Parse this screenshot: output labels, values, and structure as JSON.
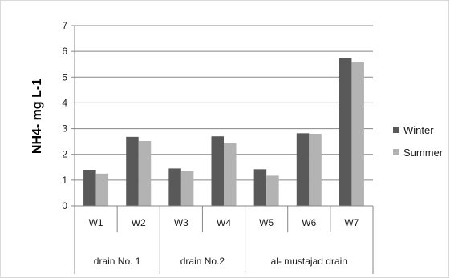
{
  "chart_data": {
    "type": "bar",
    "title": "",
    "xlabel": "",
    "ylabel": "NH4- mg L-1",
    "ylim": [
      0,
      7
    ],
    "yticks": [
      0,
      1,
      2,
      3,
      4,
      5,
      6,
      7
    ],
    "grid": true,
    "legend_position": "right",
    "categories": [
      "W1",
      "W2",
      "W3",
      "W4",
      "W5",
      "W6",
      "W7"
    ],
    "groups": [
      {
        "label": "drain No. 1",
        "categories": [
          "W1",
          "W2"
        ]
      },
      {
        "label": "drain No.2",
        "categories": [
          "W3",
          "W4"
        ]
      },
      {
        "label": "al- mustajad drain",
        "categories": [
          "W5",
          "W6",
          "W7"
        ]
      }
    ],
    "series": [
      {
        "name": "Winter",
        "color": "#595959",
        "values": [
          1.4,
          2.68,
          1.45,
          2.7,
          1.42,
          2.82,
          5.75
        ]
      },
      {
        "name": "Summer",
        "color": "#b3b3b3",
        "values": [
          1.25,
          2.52,
          1.35,
          2.45,
          1.17,
          2.8,
          5.57
        ]
      }
    ]
  }
}
